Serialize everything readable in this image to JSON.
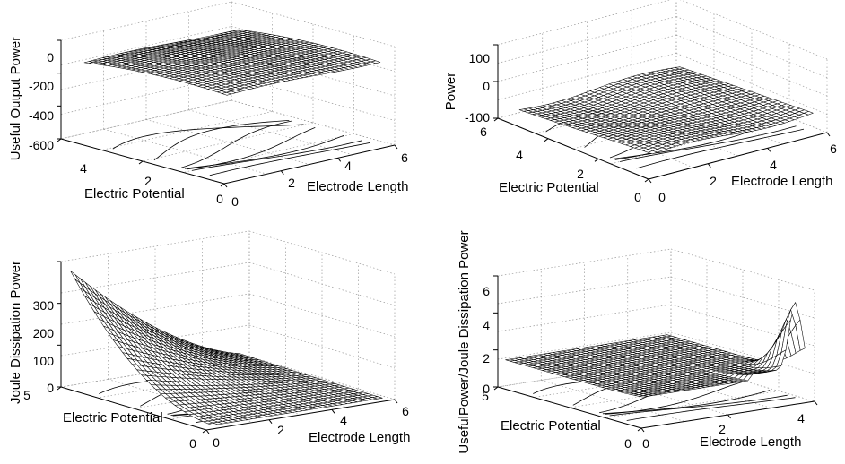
{
  "chart_data": [
    {
      "type": "surface3d",
      "zlabel": "Useful Output Power",
      "xlabel": "Electrode Length",
      "ylabel": "Electric Potential",
      "x_ticks": [
        "0",
        "2",
        "4",
        "6"
      ],
      "y_ticks": [
        "0",
        "2",
        "4"
      ],
      "z_ticks": [
        "0",
        "-200",
        "-400",
        "-600"
      ],
      "xlim": [
        0,
        6
      ],
      "ylim": [
        0,
        5.5
      ],
      "zlim": [
        -600,
        80
      ],
      "contour_projection": true,
      "surface": {
        "x_range": [
          0.3,
          5.7
        ],
        "y_range": [
          0.2,
          5.0
        ],
        "z_min": -100,
        "z_max": 0
      }
    },
    {
      "type": "surface3d",
      "zlabel": "Power",
      "xlabel": "Electrode Length",
      "ylabel": "Electric Potential",
      "x_ticks": [
        "0",
        "2",
        "4",
        "6"
      ],
      "y_ticks": [
        "0",
        "2",
        "4",
        "6"
      ],
      "z_ticks": [
        "100",
        "0",
        "-100"
      ],
      "xlim": [
        0,
        6
      ],
      "ylim": [
        0,
        6
      ],
      "zlim": [
        -100,
        100
      ],
      "contour_projection": true,
      "surface": {
        "x_range": [
          0.3,
          5.7
        ],
        "y_range": [
          0.2,
          5.5
        ],
        "z_min": -100,
        "z_max": 0
      }
    },
    {
      "type": "surface3d",
      "zlabel": "Joule Dissipation Power",
      "xlabel": "Electrode Length",
      "ylabel": "Electric Potential",
      "x_ticks": [
        "0",
        "2",
        "4",
        "6"
      ],
      "y_ticks": [
        "0",
        "5"
      ],
      "z_ticks": [
        "0",
        "100",
        "200",
        "300"
      ],
      "xlim": [
        0,
        6
      ],
      "ylim": [
        0,
        5
      ],
      "zlim": [
        0,
        340
      ],
      "contour_projection": true,
      "surface": {
        "x_range": [
          0.3,
          5.7
        ],
        "y_range": [
          0.1,
          5.0
        ],
        "z_min": 0,
        "z_max": 330
      }
    },
    {
      "type": "surface3d",
      "zlabel": "UsefulPower/Joule Dissipation Power",
      "xlabel": "Electrode Length",
      "ylabel": "Electric Potential",
      "x_ticks": [
        "0",
        "2",
        "4"
      ],
      "y_ticks": [
        "0",
        "5"
      ],
      "z_ticks": [
        "0",
        "2",
        "4",
        "6"
      ],
      "xlim": [
        0,
        4.5
      ],
      "ylim": [
        0,
        5
      ],
      "zlim": [
        0,
        6
      ],
      "contour_projection": true,
      "surface": {
        "x_range": [
          0.2,
          4.4
        ],
        "y_range": [
          0.2,
          5.0
        ],
        "z_min": 0,
        "z_max": 5.1
      }
    }
  ]
}
